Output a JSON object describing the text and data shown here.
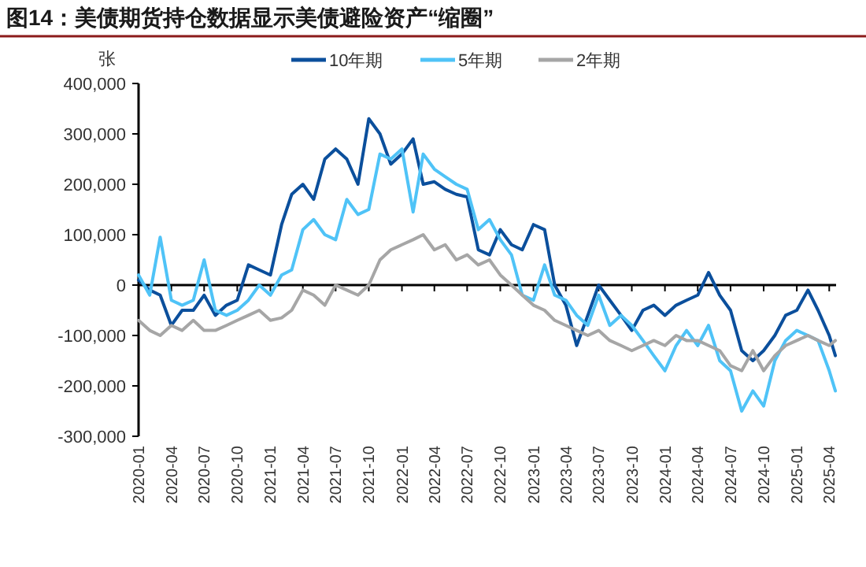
{
  "chart_data": {
    "type": "line",
    "title": "图14：美债期货持仓数据显示美债避险资产“缩圈”",
    "ylabel": "张",
    "x": [
      "2020-01",
      "2020-02",
      "2020-03",
      "2020-04",
      "2020-05",
      "2020-06",
      "2020-07",
      "2020-08",
      "2020-09",
      "2020-10",
      "2020-11",
      "2020-12",
      "2021-01",
      "2021-02",
      "2021-03",
      "2021-04",
      "2021-05",
      "2021-06",
      "2021-07",
      "2021-08",
      "2021-09",
      "2021-10",
      "2021-11",
      "2021-12",
      "2022-01",
      "2022-02",
      "2022-03",
      "2022-04",
      "2022-05",
      "2022-06",
      "2022-07",
      "2022-08",
      "2022-09",
      "2022-10",
      "2022-11",
      "2022-12",
      "2023-01",
      "2023-02",
      "2023-03",
      "2023-04",
      "2023-05",
      "2023-06",
      "2023-07",
      "2023-08",
      "2023-09",
      "2023-10",
      "2023-11",
      "2023-12",
      "2024-01",
      "2024-02",
      "2024-03",
      "2024-04",
      "2024-05",
      "2024-06",
      "2024-07",
      "2024-08",
      "2024-09",
      "2024-10",
      "2024-11",
      "2024-12",
      "2025-01",
      "2025-02",
      "2025-03",
      "2025-04",
      "2025-04-18"
    ],
    "series": [
      {
        "name": "10年期",
        "color": "#0b4f9c",
        "values": [
          10000,
          -10000,
          -20000,
          -80000,
          -50000,
          -50000,
          -20000,
          -60000,
          -40000,
          -30000,
          40000,
          30000,
          20000,
          120000,
          180000,
          200000,
          170000,
          250000,
          270000,
          250000,
          200000,
          330000,
          300000,
          240000,
          260000,
          290000,
          200000,
          205000,
          190000,
          180000,
          175000,
          70000,
          60000,
          110000,
          80000,
          70000,
          120000,
          110000,
          0,
          -40000,
          -120000,
          -60000,
          0,
          -30000,
          -60000,
          -90000,
          -50000,
          -40000,
          -60000,
          -40000,
          -30000,
          -20000,
          25000,
          -20000,
          -50000,
          -130000,
          -150000,
          -130000,
          -100000,
          -60000,
          -50000,
          -10000,
          -50000,
          -100000,
          -140000
        ]
      },
      {
        "name": "5年期",
        "color": "#4fc3f7",
        "values": [
          20000,
          -20000,
          95000,
          -30000,
          -40000,
          -30000,
          50000,
          -50000,
          -60000,
          -50000,
          -30000,
          0,
          -20000,
          20000,
          30000,
          110000,
          130000,
          100000,
          90000,
          170000,
          140000,
          150000,
          260000,
          250000,
          270000,
          145000,
          260000,
          230000,
          215000,
          200000,
          190000,
          110000,
          130000,
          90000,
          60000,
          -20000,
          -30000,
          40000,
          -20000,
          -30000,
          -60000,
          -80000,
          -20000,
          -80000,
          -60000,
          -80000,
          -110000,
          -140000,
          -170000,
          -120000,
          -90000,
          -120000,
          -80000,
          -150000,
          -170000,
          -250000,
          -210000,
          -240000,
          -150000,
          -110000,
          -90000,
          -100000,
          -110000,
          -170000,
          -210000
        ]
      },
      {
        "name": "2年期",
        "color": "#a6a6a6",
        "values": [
          -70000,
          -90000,
          -100000,
          -80000,
          -90000,
          -70000,
          -90000,
          -90000,
          -80000,
          -70000,
          -60000,
          -50000,
          -70000,
          -65000,
          -50000,
          -10000,
          -20000,
          -40000,
          0,
          -10000,
          -20000,
          0,
          50000,
          70000,
          80000,
          90000,
          100000,
          70000,
          80000,
          50000,
          60000,
          40000,
          50000,
          20000,
          0,
          -20000,
          -40000,
          -50000,
          -70000,
          -80000,
          -90000,
          -100000,
          -90000,
          -110000,
          -120000,
          -130000,
          -120000,
          -110000,
          -120000,
          -100000,
          -110000,
          -110000,
          -120000,
          -130000,
          -160000,
          -170000,
          -130000,
          -170000,
          -140000,
          -120000,
          -110000,
          -100000,
          -110000,
          -120000,
          -110000
        ]
      }
    ],
    "xlim": [
      "2020-01",
      "2025-04-20"
    ],
    "xticks": [
      "2020-01",
      "2020-04",
      "2020-07",
      "2020-10",
      "2021-01",
      "2021-04",
      "2021-07",
      "2021-10",
      "2022-01",
      "2022-04",
      "2022-07",
      "2022-10",
      "2023-01",
      "2023-04",
      "2023-07",
      "2023-10",
      "2024-01",
      "2024-04",
      "2024-07",
      "2024-10",
      "2025-01",
      "2025-04"
    ],
    "ylim": [
      -300000,
      400000
    ],
    "yticks": [
      {
        "value": -300000,
        "label": "-300,000"
      },
      {
        "value": -200000,
        "label": "-200,000"
      },
      {
        "value": -100000,
        "label": "-100,000"
      },
      0,
      {
        "value": 100000,
        "label": "100,000"
      },
      {
        "value": 200000,
        "label": "200,000"
      },
      {
        "value": 300000,
        "label": "300,000"
      },
      {
        "value": 400000,
        "label": "400,000"
      }
    ],
    "legend": "top",
    "line_style": "solid",
    "marker": "none"
  }
}
